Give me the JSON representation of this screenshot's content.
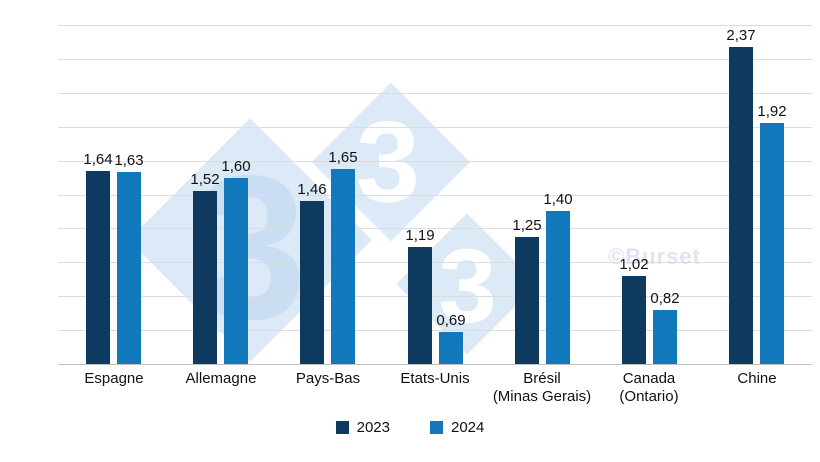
{
  "chart_data": {
    "type": "bar",
    "title": "",
    "xlabel": "",
    "ylabel": "",
    "categories": [
      "Espagne",
      "Allemagne",
      "Pays-Bas",
      "Etats-Unis",
      "Brésil (Minas Gerais)",
      "Canada (Ontario)",
      "Chine"
    ],
    "category_label_lines": [
      [
        "Espagne"
      ],
      [
        "Allemagne"
      ],
      [
        "Pays-Bas"
      ],
      [
        "Etats-Unis"
      ],
      [
        "Brésil",
        "(Minas Gerais)"
      ],
      [
        "Canada",
        "(Ontario)"
      ],
      [
        "Chine"
      ]
    ],
    "series": [
      {
        "name": "2023",
        "color": "#0e3a60",
        "values": [
          1.64,
          1.52,
          1.46,
          1.19,
          1.25,
          1.02,
          2.37
        ],
        "labels": [
          "1,64",
          "1,52",
          "1,46",
          "1,19",
          "1,25",
          "1,02",
          "2,37"
        ]
      },
      {
        "name": "2024",
        "color": "#1278bc",
        "values": [
          1.63,
          1.6,
          1.65,
          0.69,
          1.4,
          0.82,
          1.92
        ],
        "labels": [
          "1,63",
          "1,60",
          "1,65",
          "0,69",
          "1,40",
          "0,82",
          "1,92"
        ]
      }
    ],
    "ylim": [
      0.5,
      2.5
    ],
    "grid_step": 0.2,
    "grid": true,
    "y_axis_labels_visible": false,
    "legend_position": "bottom"
  },
  "legend": {
    "items": [
      {
        "label": "2023",
        "color": "#0e3a60"
      },
      {
        "label": "2024",
        "color": "#1278bc"
      }
    ]
  },
  "watermark": {
    "copyright_text": "©Burset",
    "logo_threes": [
      "3",
      "3",
      "3"
    ],
    "diamond_color": "#dce9f7",
    "big_three_color": "#cadef3",
    "small_three_color": "#ffffff"
  },
  "colors": {
    "background": "#ffffff",
    "gridline": "#dddddd",
    "axis_line": "#c3c3c3",
    "label_text": "#111111"
  }
}
